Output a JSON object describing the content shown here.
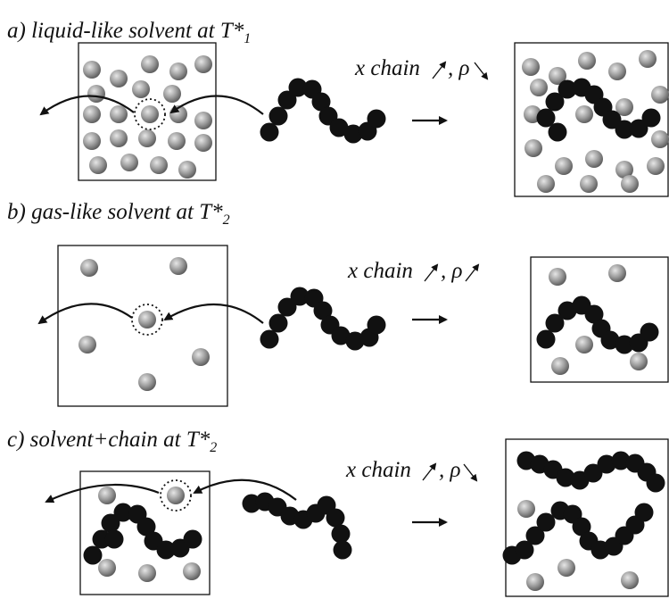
{
  "panels": [
    {
      "caption": "a) liquid-like solvent at T*",
      "subscript": "1",
      "annotation": "x chain",
      "density": ", ρ"
    },
    {
      "caption": "b) gas-like solvent at T*",
      "subscript": "2",
      "annotation": "x chain",
      "density": ", ρ"
    },
    {
      "caption": "c) solvent+chain at T*",
      "subscript": "2",
      "annotation": "x chain",
      "density": ", ρ"
    }
  ]
}
